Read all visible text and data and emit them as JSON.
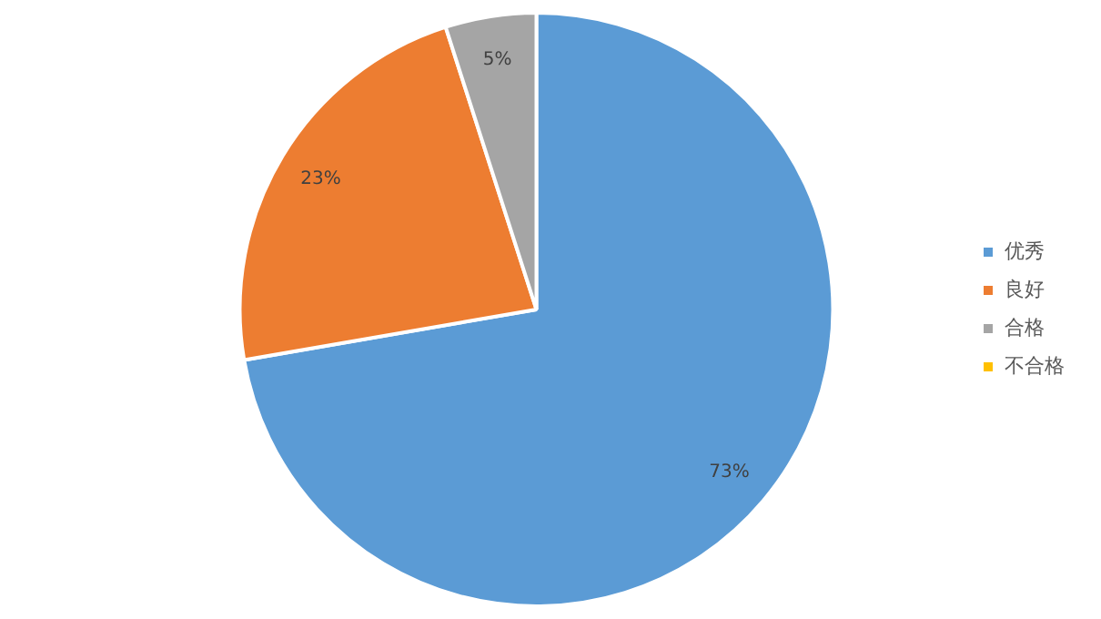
{
  "chart_data": {
    "type": "pie",
    "categories": [
      "优秀",
      "良好",
      "合格",
      "不合格"
    ],
    "values": [
      73,
      23,
      5,
      0
    ],
    "colors": [
      "#5b9bd5",
      "#ed7d31",
      "#a5a5a5",
      "#ffc000"
    ],
    "value_labels": [
      "73%",
      "23%",
      "5%",
      null
    ],
    "legend": "right"
  }
}
